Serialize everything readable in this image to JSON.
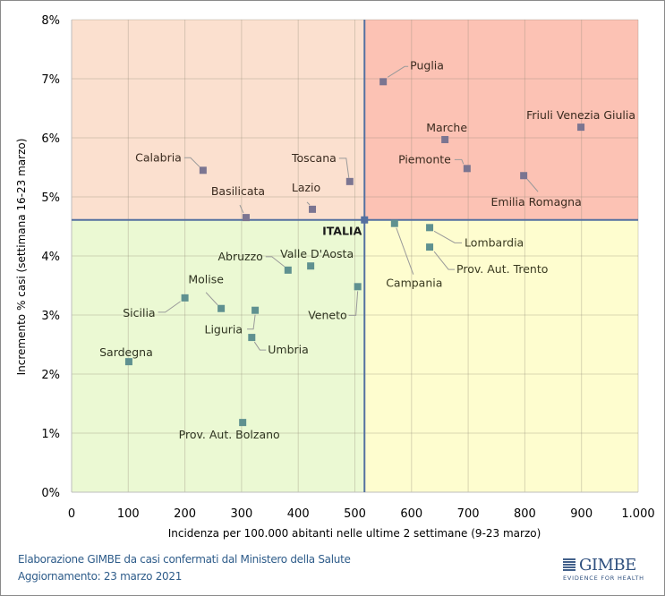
{
  "chart_data": {
    "type": "scatter",
    "xlabel": "Incidenza per 100.000  abitanti nelle ultime 2 settimane (9-23 marzo)",
    "ylabel": "Incremento % casi (settimana 16-23 marzo)",
    "xlim": [
      0,
      1000
    ],
    "ylim": [
      0,
      8
    ],
    "x_ticks": [
      0,
      100,
      200,
      300,
      400,
      500,
      600,
      700,
      800,
      900,
      1000
    ],
    "x_tick_labels": [
      "0",
      "100",
      "200",
      "300",
      "400",
      "500",
      "600",
      "700",
      "800",
      "900",
      "1.000"
    ],
    "y_ticks": [
      0,
      1,
      2,
      3,
      4,
      5,
      6,
      7,
      8
    ],
    "y_tick_labels": [
      "0%",
      "1%",
      "2%",
      "3%",
      "4%",
      "5%",
      "6%",
      "7%",
      "8%"
    ],
    "grid": true,
    "reference": {
      "name": "ITALIA",
      "x": 517,
      "y": 4.61
    },
    "quadrant_colors": {
      "top_left": "#fbe0cf",
      "top_right": "#fcc2b4",
      "bottom_left": "#ebf9d3",
      "bottom_right": "#fefdcf"
    },
    "reference_line_color": "#5470a0",
    "points": [
      {
        "name": "Puglia",
        "x": 550,
        "y": 6.95
      },
      {
        "name": "Friuli Venezia Giulia",
        "x": 899,
        "y": 6.18
      },
      {
        "name": "Marche",
        "x": 659,
        "y": 5.97
      },
      {
        "name": "Piemonte",
        "x": 698,
        "y": 5.48
      },
      {
        "name": "Emilia Romagna",
        "x": 798,
        "y": 5.36
      },
      {
        "name": "Calabria",
        "x": 232,
        "y": 5.45
      },
      {
        "name": "Toscana",
        "x": 491,
        "y": 5.26
      },
      {
        "name": "Lazio",
        "x": 425,
        "y": 4.79
      },
      {
        "name": "Basilicata",
        "x": 308,
        "y": 4.65
      },
      {
        "name": "Campania",
        "x": 570,
        "y": 4.55
      },
      {
        "name": "Lombardia",
        "x": 632,
        "y": 4.48
      },
      {
        "name": "Prov. Aut. Trento",
        "x": 632,
        "y": 4.15
      },
      {
        "name": "Valle D'Aosta",
        "x": 422,
        "y": 3.83
      },
      {
        "name": "Abruzzo",
        "x": 382,
        "y": 3.76
      },
      {
        "name": "Veneto",
        "x": 505,
        "y": 3.48
      },
      {
        "name": "Sicilia",
        "x": 200,
        "y": 3.29
      },
      {
        "name": "Molise",
        "x": 264,
        "y": 3.11
      },
      {
        "name": "Liguria",
        "x": 324,
        "y": 3.08
      },
      {
        "name": "Umbria",
        "x": 318,
        "y": 2.62
      },
      {
        "name": "Sardegna",
        "x": 101,
        "y": 2.21
      },
      {
        "name": "Prov. Aut. Bolzano",
        "x": 302,
        "y": 1.18
      }
    ]
  },
  "footer": {
    "source": "Elaborazione GIMBE da casi confermati dal Ministero della Salute",
    "updated": "Aggiornamento: 23 marzo 2021"
  },
  "logo": {
    "name": "GIMBE",
    "tagline": "EVIDENCE FOR HEALTH"
  }
}
